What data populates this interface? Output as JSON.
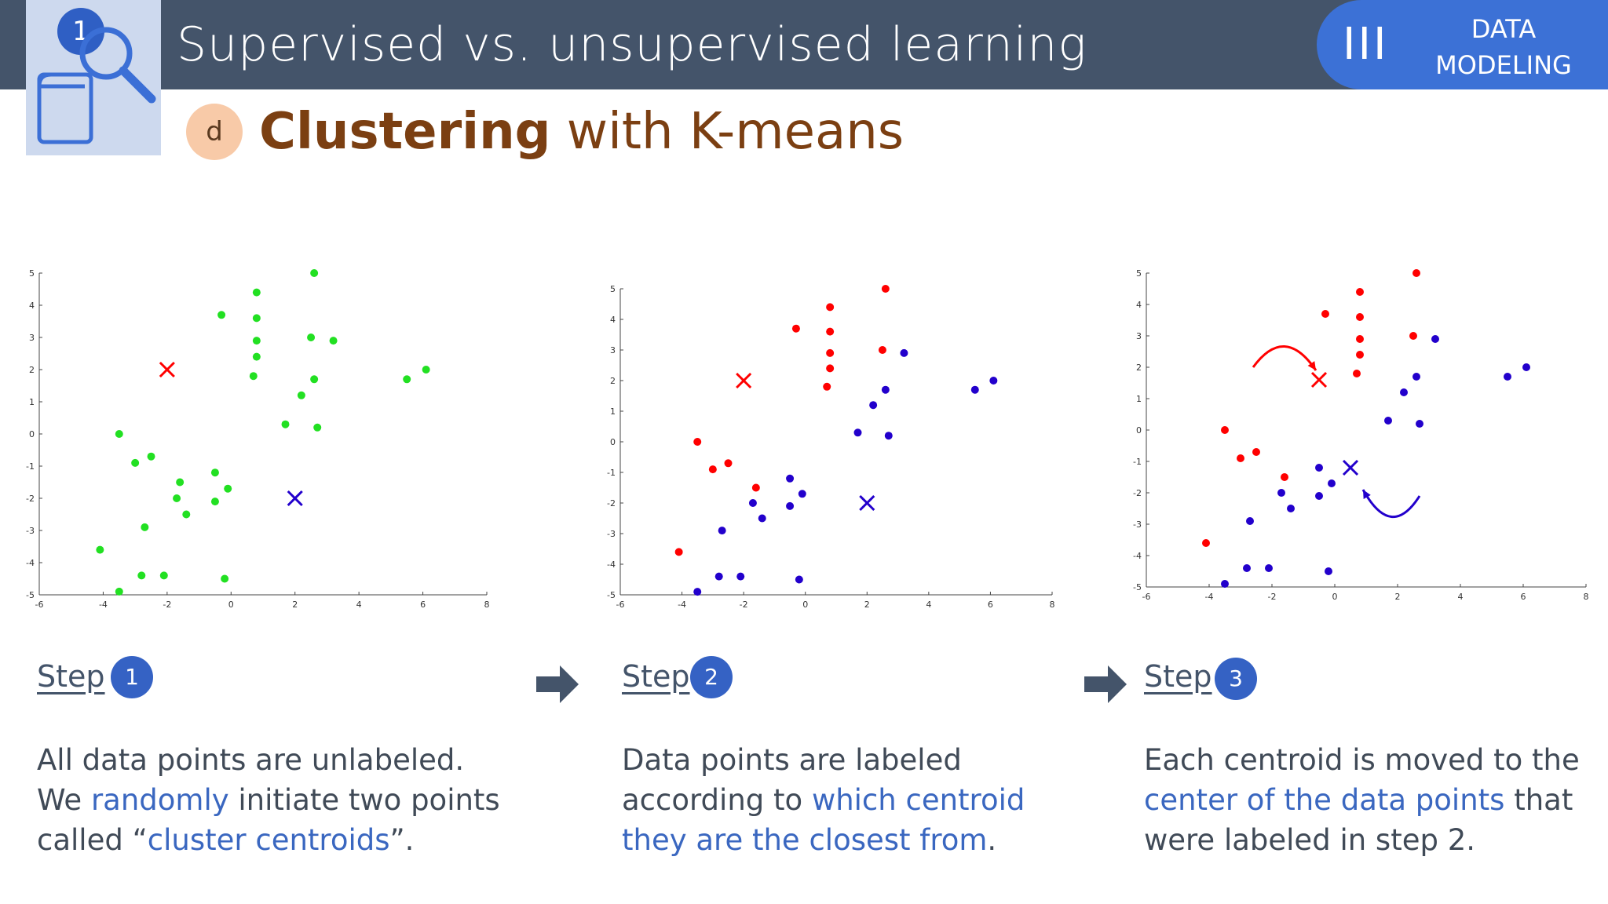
{
  "header": {
    "title": "Supervised vs. unsupervised learning",
    "badge_number": "1",
    "logo_icon": "book-magnifier-icon",
    "section_roman": "III",
    "section_label_line1": "DATA",
    "section_label_line2": "MODELING"
  },
  "subheader": {
    "badge_letter": "d",
    "title_bold": "Clustering",
    "title_rest": " with K-means"
  },
  "colors": {
    "header_bg": "#44546a",
    "accent_blue": "#3a67c0",
    "cluster_a": "#ff0000",
    "cluster_b": "#2200cc",
    "unlabeled": "#22e022"
  },
  "steps": [
    {
      "label": "Step",
      "number": "1",
      "text_1": "All data points are unlabeled.",
      "text_2": "We ",
      "text_3": "randomly",
      "text_4": " initiate two points",
      "text_5": "called “",
      "text_6": "cluster centroids",
      "text_7": "”."
    },
    {
      "label": "Step",
      "number": "2",
      "text_1": "Data points are labeled",
      "text_2": "according to ",
      "text_3": "which centroid",
      "text_4": "they are the closest from",
      "text_5": "."
    },
    {
      "label": "Step",
      "number": "3",
      "text_1": "Each centroid is moved to the",
      "text_2": "center of the data points",
      "text_3": " that",
      "text_4": "were labeled in step 2."
    }
  ],
  "chart_data": [
    {
      "type": "scatter",
      "xlim": [
        -6,
        8
      ],
      "ylim": [
        -5,
        5
      ],
      "x_ticks": [
        "-6",
        "-4",
        "-2",
        "0",
        "2",
        "4",
        "6",
        "8"
      ],
      "y_ticks": [
        "5",
        "4",
        "3",
        "2",
        "1",
        "0",
        "-1",
        "-2",
        "-3",
        "-4",
        "-5"
      ],
      "series": [
        {
          "color": "#22e022",
          "points": [
            [
              -0.3,
              3.7
            ],
            [
              0.8,
              4.4
            ],
            [
              0.8,
              3.6
            ],
            [
              0.8,
              2.9
            ],
            [
              0.8,
              2.4
            ],
            [
              0.7,
              1.8
            ],
            [
              2.6,
              5.0
            ],
            [
              2.5,
              3.0
            ],
            [
              3.2,
              2.9
            ],
            [
              2.6,
              1.7
            ],
            [
              2.2,
              1.2
            ],
            [
              1.7,
              0.3
            ],
            [
              2.7,
              0.2
            ],
            [
              5.5,
              1.7
            ],
            [
              6.1,
              2.0
            ],
            [
              -3.5,
              0.0
            ],
            [
              -3.0,
              -0.9
            ],
            [
              -2.5,
              -0.7
            ],
            [
              -1.6,
              -1.5
            ],
            [
              -1.7,
              -2.0
            ],
            [
              -1.4,
              -2.5
            ],
            [
              -0.5,
              -1.2
            ],
            [
              -0.5,
              -2.1
            ],
            [
              -0.1,
              -1.7
            ],
            [
              -2.7,
              -2.9
            ],
            [
              -4.1,
              -3.6
            ],
            [
              -2.8,
              -4.4
            ],
            [
              -2.1,
              -4.4
            ],
            [
              -3.5,
              -4.9
            ],
            [
              -0.2,
              -4.5
            ]
          ]
        }
      ],
      "centroids": [
        {
          "x": -2.0,
          "y": 2.0,
          "color": "#ff0000"
        },
        {
          "x": 2.0,
          "y": -2.0,
          "color": "#2200cc"
        }
      ]
    },
    {
      "type": "scatter",
      "xlim": [
        -6,
        8
      ],
      "ylim": [
        -5,
        5
      ],
      "x_ticks": [
        "-6",
        "-4",
        "-2",
        "0",
        "2",
        "4",
        "6",
        "8"
      ],
      "y_ticks": [
        "5",
        "4",
        "3",
        "2",
        "1",
        "0",
        "-1",
        "-2",
        "-3",
        "-4",
        "-5"
      ],
      "series": [
        {
          "color": "#ff0000",
          "points": [
            [
              -0.3,
              3.7
            ],
            [
              0.8,
              4.4
            ],
            [
              0.8,
              3.6
            ],
            [
              0.8,
              2.9
            ],
            [
              0.8,
              2.4
            ],
            [
              0.7,
              1.8
            ],
            [
              2.6,
              5.0
            ],
            [
              2.5,
              3.0
            ],
            [
              -3.5,
              0.0
            ],
            [
              -3.0,
              -0.9
            ],
            [
              -2.5,
              -0.7
            ],
            [
              -1.6,
              -1.5
            ],
            [
              -4.1,
              -3.6
            ]
          ]
        },
        {
          "color": "#2200cc",
          "points": [
            [
              3.2,
              2.9
            ],
            [
              2.6,
              1.7
            ],
            [
              2.2,
              1.2
            ],
            [
              1.7,
              0.3
            ],
            [
              2.7,
              0.2
            ],
            [
              5.5,
              1.7
            ],
            [
              6.1,
              2.0
            ],
            [
              -1.7,
              -2.0
            ],
            [
              -1.4,
              -2.5
            ],
            [
              -0.5,
              -1.2
            ],
            [
              -0.5,
              -2.1
            ],
            [
              -0.1,
              -1.7
            ],
            [
              -2.7,
              -2.9
            ],
            [
              -2.8,
              -4.4
            ],
            [
              -2.1,
              -4.4
            ],
            [
              -3.5,
              -4.9
            ],
            [
              -0.2,
              -4.5
            ]
          ]
        }
      ],
      "centroids": [
        {
          "x": -2.0,
          "y": 2.0,
          "color": "#ff0000"
        },
        {
          "x": 2.0,
          "y": -2.0,
          "color": "#2200cc"
        }
      ]
    },
    {
      "type": "scatter",
      "xlim": [
        -6,
        8
      ],
      "ylim": [
        -5,
        5
      ],
      "x_ticks": [
        "-6",
        "-4",
        "-2",
        "0",
        "2",
        "4",
        "6",
        "8"
      ],
      "y_ticks": [
        "5",
        "4",
        "3",
        "2",
        "1",
        "0",
        "-1",
        "-2",
        "-3",
        "-4",
        "-5"
      ],
      "series": [
        {
          "color": "#ff0000",
          "points": [
            [
              -0.3,
              3.7
            ],
            [
              0.8,
              4.4
            ],
            [
              0.8,
              3.6
            ],
            [
              0.8,
              2.9
            ],
            [
              0.8,
              2.4
            ],
            [
              0.7,
              1.8
            ],
            [
              2.6,
              5.0
            ],
            [
              2.5,
              3.0
            ],
            [
              -3.5,
              0.0
            ],
            [
              -3.0,
              -0.9
            ],
            [
              -2.5,
              -0.7
            ],
            [
              -1.6,
              -1.5
            ],
            [
              -4.1,
              -3.6
            ]
          ]
        },
        {
          "color": "#2200cc",
          "points": [
            [
              3.2,
              2.9
            ],
            [
              2.6,
              1.7
            ],
            [
              2.2,
              1.2
            ],
            [
              1.7,
              0.3
            ],
            [
              2.7,
              0.2
            ],
            [
              5.5,
              1.7
            ],
            [
              6.1,
              2.0
            ],
            [
              -1.7,
              -2.0
            ],
            [
              -1.4,
              -2.5
            ],
            [
              -0.5,
              -1.2
            ],
            [
              -0.5,
              -2.1
            ],
            [
              -0.1,
              -1.7
            ],
            [
              -2.7,
              -2.9
            ],
            [
              -2.8,
              -4.4
            ],
            [
              -2.1,
              -4.4
            ],
            [
              -3.5,
              -4.9
            ],
            [
              -0.2,
              -4.5
            ]
          ]
        }
      ],
      "centroids": [
        {
          "x": -0.5,
          "y": 1.6,
          "color": "#ff0000"
        },
        {
          "x": 0.5,
          "y": -1.2,
          "color": "#2200cc"
        }
      ],
      "movement_arrows": [
        {
          "color": "#ff0000",
          "from": [
            -2.6,
            2.0
          ],
          "to": [
            -0.6,
            1.9
          ]
        },
        {
          "color": "#2200cc",
          "from": [
            2.7,
            -2.1
          ],
          "to": [
            0.9,
            -1.9
          ]
        }
      ]
    }
  ]
}
